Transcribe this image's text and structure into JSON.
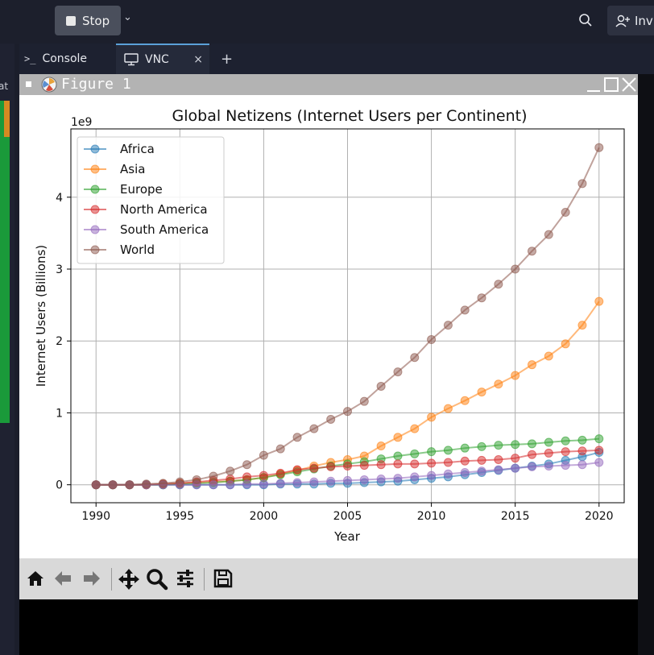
{
  "topbar": {
    "stop_label": "Stop",
    "invite_label": "Inv"
  },
  "leftstrip": {
    "label": "at"
  },
  "tabs": {
    "console_label": "Console",
    "vnc_label": "VNC",
    "close": "×",
    "add": "+"
  },
  "figure": {
    "window_title": "Figure 1"
  },
  "chart_data": {
    "type": "line",
    "title": "Global Netizens (Internet Users per Continent)",
    "xlabel": "Year",
    "ylabel": "Internet Users (Billions)",
    "y_offset_label": "1e9",
    "xlim": [
      1988.5,
      2021.5
    ],
    "ylim": [
      -0.25,
      4.95
    ],
    "xticks": [
      1990,
      1995,
      2000,
      2005,
      2010,
      2015,
      2020
    ],
    "yticks": [
      0,
      1,
      2,
      3,
      4
    ],
    "grid": true,
    "legend_position": "top-left",
    "x": [
      1990,
      1991,
      1992,
      1993,
      1994,
      1995,
      1996,
      1997,
      1998,
      1999,
      2000,
      2001,
      2002,
      2003,
      2004,
      2005,
      2006,
      2007,
      2008,
      2009,
      2010,
      2011,
      2012,
      2013,
      2014,
      2015,
      2016,
      2017,
      2018,
      2019,
      2020
    ],
    "series": [
      {
        "name": "Africa",
        "color": "#1f77b4",
        "values": [
          0,
          0,
          0,
          0,
          0,
          0,
          0,
          0,
          0,
          0,
          0,
          0.01,
          0.01,
          0.01,
          0.02,
          0.02,
          0.03,
          0.04,
          0.05,
          0.07,
          0.09,
          0.11,
          0.14,
          0.17,
          0.2,
          0.23,
          0.26,
          0.29,
          0.34,
          0.39,
          0.45
        ]
      },
      {
        "name": "Asia",
        "color": "#ff7f0e",
        "values": [
          0,
          0,
          0,
          0,
          0.01,
          0.02,
          0.03,
          0.04,
          0.05,
          0.07,
          0.1,
          0.15,
          0.2,
          0.26,
          0.31,
          0.35,
          0.4,
          0.54,
          0.66,
          0.78,
          0.94,
          1.06,
          1.17,
          1.29,
          1.4,
          1.52,
          1.67,
          1.79,
          1.96,
          2.22,
          2.55
        ]
      },
      {
        "name": "Europe",
        "color": "#2ca02c",
        "values": [
          0,
          0,
          0,
          0,
          0,
          0.01,
          0.02,
          0.03,
          0.05,
          0.07,
          0.1,
          0.14,
          0.18,
          0.22,
          0.26,
          0.29,
          0.32,
          0.36,
          0.4,
          0.43,
          0.46,
          0.48,
          0.51,
          0.53,
          0.55,
          0.56,
          0.57,
          0.59,
          0.61,
          0.62,
          0.64
        ]
      },
      {
        "name": "North America",
        "color": "#d62728",
        "values": [
          0,
          0,
          0,
          0,
          0.01,
          0.02,
          0.04,
          0.06,
          0.08,
          0.11,
          0.13,
          0.16,
          0.21,
          0.23,
          0.25,
          0.26,
          0.27,
          0.28,
          0.29,
          0.29,
          0.3,
          0.31,
          0.33,
          0.34,
          0.35,
          0.37,
          0.42,
          0.44,
          0.46,
          0.47,
          0.48
        ]
      },
      {
        "name": "South America",
        "color": "#9467bd",
        "values": [
          0,
          0,
          0,
          0,
          0,
          0,
          0,
          0,
          0,
          0.01,
          0.01,
          0.02,
          0.03,
          0.04,
          0.05,
          0.06,
          0.07,
          0.08,
          0.09,
          0.11,
          0.13,
          0.15,
          0.17,
          0.19,
          0.21,
          0.23,
          0.25,
          0.26,
          0.27,
          0.28,
          0.31
        ]
      },
      {
        "name": "World",
        "color": "#8c564b",
        "values": [
          0,
          0,
          0,
          0.01,
          0.02,
          0.04,
          0.07,
          0.12,
          0.19,
          0.28,
          0.41,
          0.5,
          0.66,
          0.78,
          0.91,
          1.02,
          1.16,
          1.37,
          1.57,
          1.77,
          2.02,
          2.22,
          2.43,
          2.6,
          2.79,
          3.0,
          3.25,
          3.48,
          3.79,
          4.19,
          4.69
        ]
      }
    ]
  },
  "toolbar": {
    "icons": [
      "home-icon",
      "back-icon",
      "forward-icon",
      "pan-icon",
      "zoom-icon",
      "configure-icon",
      "save-icon"
    ]
  }
}
